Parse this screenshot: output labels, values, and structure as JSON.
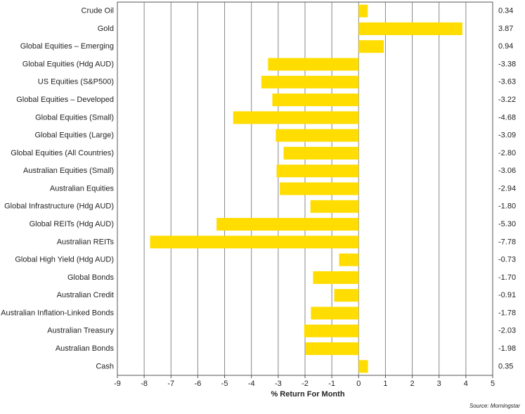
{
  "chart_data": {
    "type": "hbar",
    "categories": [
      "Crude Oil",
      "Gold",
      "Global Equities – Emerging",
      "Global Equities (Hdg AUD)",
      "US Equities (S&P500)",
      "Global Equities – Developed",
      "Global Equities (Small)",
      "Global Equities (Large)",
      "Global Equities (All Countries)",
      "Australian Equities (Small)",
      "Australian Equities",
      "Global Infrastructure (Hdg AUD)",
      "Global REITs (Hdg AUD)",
      "Australian REITs",
      "Global High Yield (Hdg AUD)",
      "Global Bonds",
      "Australian Credit",
      "Australian Inflation-Linked Bonds",
      "Australian Treasury",
      "Australian Bonds",
      "Cash"
    ],
    "values": [
      0.34,
      3.87,
      0.94,
      -3.38,
      -3.63,
      -3.22,
      -4.68,
      -3.09,
      -2.8,
      -3.06,
      -2.94,
      -1.8,
      -5.3,
      -7.78,
      -0.73,
      -1.7,
      -0.91,
      -1.78,
      -2.03,
      -1.98,
      0.35
    ],
    "value_labels": [
      "0.34",
      "3.87",
      "0.94",
      "-3.38",
      "-3.63",
      "-3.22",
      "-4.68",
      "-3.09",
      "-2.80",
      "-3.06",
      "-2.94",
      "-1.80",
      "-5.30",
      "-7.78",
      "-0.73",
      "-1.70",
      "-0.91",
      "-1.78",
      "-2.03",
      "-1.98",
      "0.35"
    ],
    "color": "#ffdd00",
    "xlabel": "% Return For Month",
    "source": "Source: Morningstar",
    "xlim": [
      -9,
      5
    ],
    "xticks": [
      -9,
      -8,
      -7,
      -6,
      -5,
      -4,
      -3,
      -2,
      -1,
      0,
      1,
      2,
      3,
      4,
      5
    ],
    "grid": true
  }
}
